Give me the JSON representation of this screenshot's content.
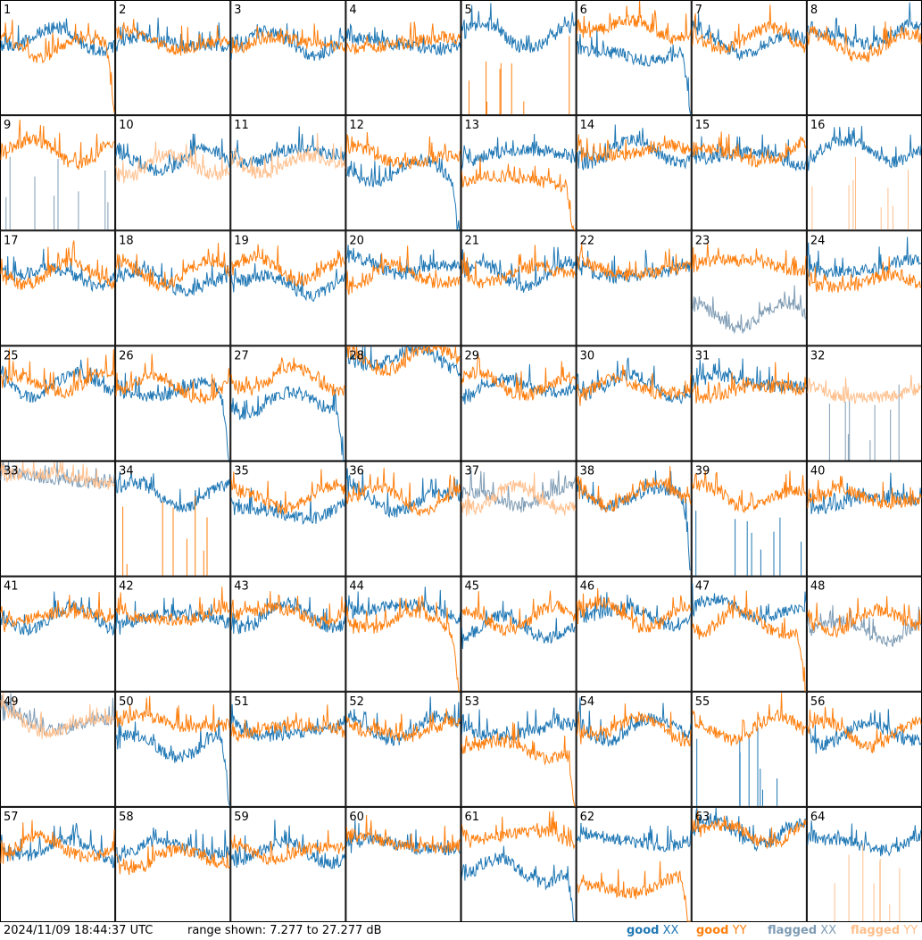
{
  "footer": {
    "timestamp": "2024/11/09 18:44:37 UTC",
    "range_text": "range shown: 7.277 to 27.277 dB"
  },
  "legend": [
    {
      "key": "good-xx",
      "word": "good",
      "pol": "XX",
      "color": "#1f77b4"
    },
    {
      "key": "good-yy",
      "word": "good",
      "pol": "YY",
      "color": "#ff7f0e"
    },
    {
      "key": "flagged-xx",
      "word": "flagged",
      "pol": "XX",
      "color": "#7f9cb4"
    },
    {
      "key": "flagged-yy",
      "word": "flagged",
      "pol": "YY",
      "color": "#ffbf8c"
    }
  ],
  "colors": {
    "good_xx": "#1f77b4",
    "good_yy": "#ff7f0e",
    "flagged_xx": "#7f9cb4",
    "flagged_yy": "#ffbf8c"
  },
  "chart_data": {
    "type": "line",
    "layout": "8x8 small multiples",
    "units": "dB",
    "ylim": [
      7.277,
      27.277
    ],
    "panels": [
      {
        "id": "1",
        "xx": "good",
        "yy": "good",
        "xx_level": 20.6,
        "yy_level": 19.4,
        "yy_rolloff": true
      },
      {
        "id": "2",
        "xx": "good",
        "yy": "good",
        "xx_level": 19.8,
        "yy_level": 19.9
      },
      {
        "id": "3",
        "xx": "good",
        "yy": "good",
        "xx_level": 19.8,
        "yy_level": 19.9
      },
      {
        "id": "4",
        "xx": "good",
        "yy": "good",
        "xx_level": 19.6,
        "yy_level": 19.9
      },
      {
        "id": "5",
        "xx": "good",
        "yy": "good",
        "xx_level": 21.0,
        "yy_level": 7.5,
        "yy_spikes": true
      },
      {
        "id": "6",
        "xx": "good",
        "yy": "good",
        "xx_level": 17.8,
        "yy_level": 22.4,
        "xx_rolloff": true
      },
      {
        "id": "7",
        "xx": "good",
        "yy": "good",
        "xx_level": 19.8,
        "yy_level": 20.5
      },
      {
        "id": "8",
        "xx": "good",
        "yy": "good",
        "xx_level": 21.0,
        "yy_level": 19.4
      },
      {
        "id": "9",
        "xx": "flagged",
        "yy": "good",
        "xx_level": 7.5,
        "yy_level": 21.0,
        "xx_spikes": true
      },
      {
        "id": "10",
        "xx": "good",
        "yy": "flagged",
        "xx_level": 19.4,
        "yy_level": 18.5
      },
      {
        "id": "11",
        "xx": "good",
        "yy": "flagged",
        "xx_level": 20.6,
        "yy_level": 19.0
      },
      {
        "id": "12",
        "xx": "good",
        "yy": "good",
        "xx_level": 17.5,
        "yy_level": 20.0,
        "xx_rolloff": true
      },
      {
        "id": "13",
        "xx": "good",
        "yy": "good",
        "xx_level": 20.6,
        "yy_level": 15.8,
        "yy_rolloff": true
      },
      {
        "id": "14",
        "xx": "good",
        "yy": "good",
        "xx_level": 21.0,
        "yy_level": 21.0
      },
      {
        "id": "15",
        "xx": "good",
        "yy": "good",
        "xx_level": 20.0,
        "yy_level": 20.6
      },
      {
        "id": "16",
        "xx": "good",
        "yy": "flagged",
        "xx_level": 21.0,
        "yy_level": 7.5,
        "yy_spikes": true
      },
      {
        "id": "17",
        "xx": "good",
        "yy": "good",
        "xx_level": 19.6,
        "yy_level": 19.8
      },
      {
        "id": "18",
        "xx": "good",
        "yy": "good",
        "xx_level": 18.3,
        "yy_level": 20.0
      },
      {
        "id": "19",
        "xx": "good",
        "yy": "good",
        "xx_level": 18.0,
        "yy_level": 20.6
      },
      {
        "id": "20",
        "xx": "good",
        "yy": "good",
        "xx_level": 20.9,
        "yy_level": 19.4
      },
      {
        "id": "21",
        "xx": "good",
        "yy": "good",
        "xx_level": 19.7,
        "yy_level": 19.9
      },
      {
        "id": "22",
        "xx": "good",
        "yy": "good",
        "xx_level": 20.0,
        "yy_level": 20.4
      },
      {
        "id": "23",
        "xx": "flagged",
        "yy": "good",
        "xx_level": 12.5,
        "yy_level": 21.6
      },
      {
        "id": "24",
        "xx": "good",
        "yy": "good",
        "xx_level": 20.8,
        "yy_level": 18.3
      },
      {
        "id": "25",
        "xx": "good",
        "yy": "good",
        "xx_level": 20.6,
        "yy_level": 20.9,
        "xx_flag_spike": true
      },
      {
        "id": "26",
        "xx": "good",
        "yy": "good",
        "xx_level": 19.3,
        "yy_level": 20.2,
        "xx_rolloff": true
      },
      {
        "id": "27",
        "xx": "good",
        "yy": "good",
        "xx_level": 17.5,
        "yy_level": 21.6,
        "xx_rolloff": true
      },
      {
        "id": "28",
        "xx": "good",
        "yy": "good",
        "xx_level": 25.1,
        "yy_level": 25.2
      },
      {
        "id": "29",
        "xx": "good",
        "yy": "good",
        "xx_level": 20.0,
        "yy_level": 20.5
      },
      {
        "id": "30",
        "xx": "good",
        "yy": "good",
        "xx_level": 20.4,
        "yy_level": 20.0
      },
      {
        "id": "31",
        "xx": "good",
        "yy": "good",
        "xx_level": 20.9,
        "yy_level": 19.6
      },
      {
        "id": "32",
        "xx": "flagged",
        "yy": "flagged",
        "xx_level": 7.5,
        "yy_level": 18.9,
        "xx_spikes": true
      },
      {
        "id": "33",
        "xx": "flagged",
        "yy": "flagged",
        "xx_level": 24.4,
        "yy_level": 24.6
      },
      {
        "id": "34",
        "xx": "good",
        "yy": "good",
        "xx_level": 21.4,
        "yy_level": 7.5,
        "yy_spikes": true
      },
      {
        "id": "35",
        "xx": "good",
        "yy": "good",
        "xx_level": 18.4,
        "yy_level": 20.9
      },
      {
        "id": "36",
        "xx": "good",
        "yy": "good",
        "xx_level": 20.5,
        "yy_level": 20.9
      },
      {
        "id": "37",
        "xx": "flagged",
        "yy": "flagged",
        "xx_level": 20.9,
        "yy_level": 20.9
      },
      {
        "id": "38",
        "xx": "good",
        "yy": "good",
        "xx_level": 21.4,
        "yy_level": 21.6,
        "xx_rolloff": true
      },
      {
        "id": "39",
        "xx": "good",
        "yy": "good",
        "xx_level": 7.5,
        "yy_level": 21.0,
        "xx_spikes": true
      },
      {
        "id": "40",
        "xx": "good",
        "yy": "good",
        "xx_level": 20.4,
        "yy_level": 20.9
      },
      {
        "id": "41",
        "xx": "good",
        "yy": "good",
        "xx_level": 20.0,
        "yy_level": 20.4
      },
      {
        "id": "42",
        "xx": "good",
        "yy": "good",
        "xx_level": 20.0,
        "yy_level": 20.5
      },
      {
        "id": "43",
        "xx": "good",
        "yy": "good",
        "xx_level": 20.4,
        "yy_level": 20.9
      },
      {
        "id": "44",
        "xx": "good",
        "yy": "good",
        "xx_level": 21.6,
        "yy_level": 19.4,
        "yy_rolloff": true
      },
      {
        "id": "45",
        "xx": "good",
        "yy": "good",
        "xx_level": 18.3,
        "yy_level": 19.9
      },
      {
        "id": "46",
        "xx": "good",
        "yy": "good",
        "xx_level": 20.6,
        "yy_level": 20.5
      },
      {
        "id": "47",
        "xx": "good",
        "yy": "good",
        "xx_level": 21.4,
        "yy_level": 19.0,
        "yy_rolloff": true
      },
      {
        "id": "48",
        "xx": "flagged",
        "yy": "good",
        "xx_level": 18.0,
        "yy_level": 19.8
      },
      {
        "id": "49",
        "xx": "flagged",
        "yy": "flagged",
        "xx_level": 21.9,
        "yy_level": 21.6
      },
      {
        "id": "50",
        "xx": "good",
        "yy": "good",
        "xx_level": 17.9,
        "yy_level": 21.9,
        "xx_rolloff": true
      },
      {
        "id": "51",
        "xx": "good",
        "yy": "good",
        "xx_level": 20.5,
        "yy_level": 20.9
      },
      {
        "id": "52",
        "xx": "good",
        "yy": "good",
        "xx_level": 21.0,
        "yy_level": 20.5
      },
      {
        "id": "53",
        "xx": "good",
        "yy": "good",
        "xx_level": 20.5,
        "yy_level": 17.5,
        "yy_rolloff": true
      },
      {
        "id": "54",
        "xx": "good",
        "yy": "good",
        "xx_level": 20.9,
        "yy_level": 21.0
      },
      {
        "id": "55",
        "xx": "good",
        "yy": "good",
        "xx_level": 7.5,
        "yy_level": 21.0,
        "xx_spikes": true
      },
      {
        "id": "56",
        "xx": "good",
        "yy": "good",
        "xx_level": 20.0,
        "yy_level": 19.9
      },
      {
        "id": "57",
        "xx": "good",
        "yy": "good",
        "xx_level": 19.9,
        "yy_level": 20.2
      },
      {
        "id": "58",
        "xx": "good",
        "yy": "good",
        "xx_level": 20.0,
        "yy_level": 18.4
      },
      {
        "id": "59",
        "xx": "good",
        "yy": "good",
        "xx_level": 19.4,
        "yy_level": 19.6
      },
      {
        "id": "60",
        "xx": "good",
        "yy": "good",
        "xx_level": 20.5,
        "yy_level": 20.9
      },
      {
        "id": "61",
        "xx": "good",
        "yy": "good",
        "xx_level": 16.2,
        "yy_level": 22.2,
        "xx_rolloff": true
      },
      {
        "id": "62",
        "xx": "good",
        "yy": "good",
        "xx_level": 21.4,
        "yy_level": 13.3,
        "yy_rolloff": true
      },
      {
        "id": "63",
        "xx": "good",
        "yy": "good",
        "xx_level": 22.8,
        "yy_level": 22.9
      },
      {
        "id": "64",
        "xx": "good",
        "yy": "flagged",
        "xx_level": 21.0,
        "yy_level": 7.5,
        "yy_spikes": true
      }
    ]
  }
}
